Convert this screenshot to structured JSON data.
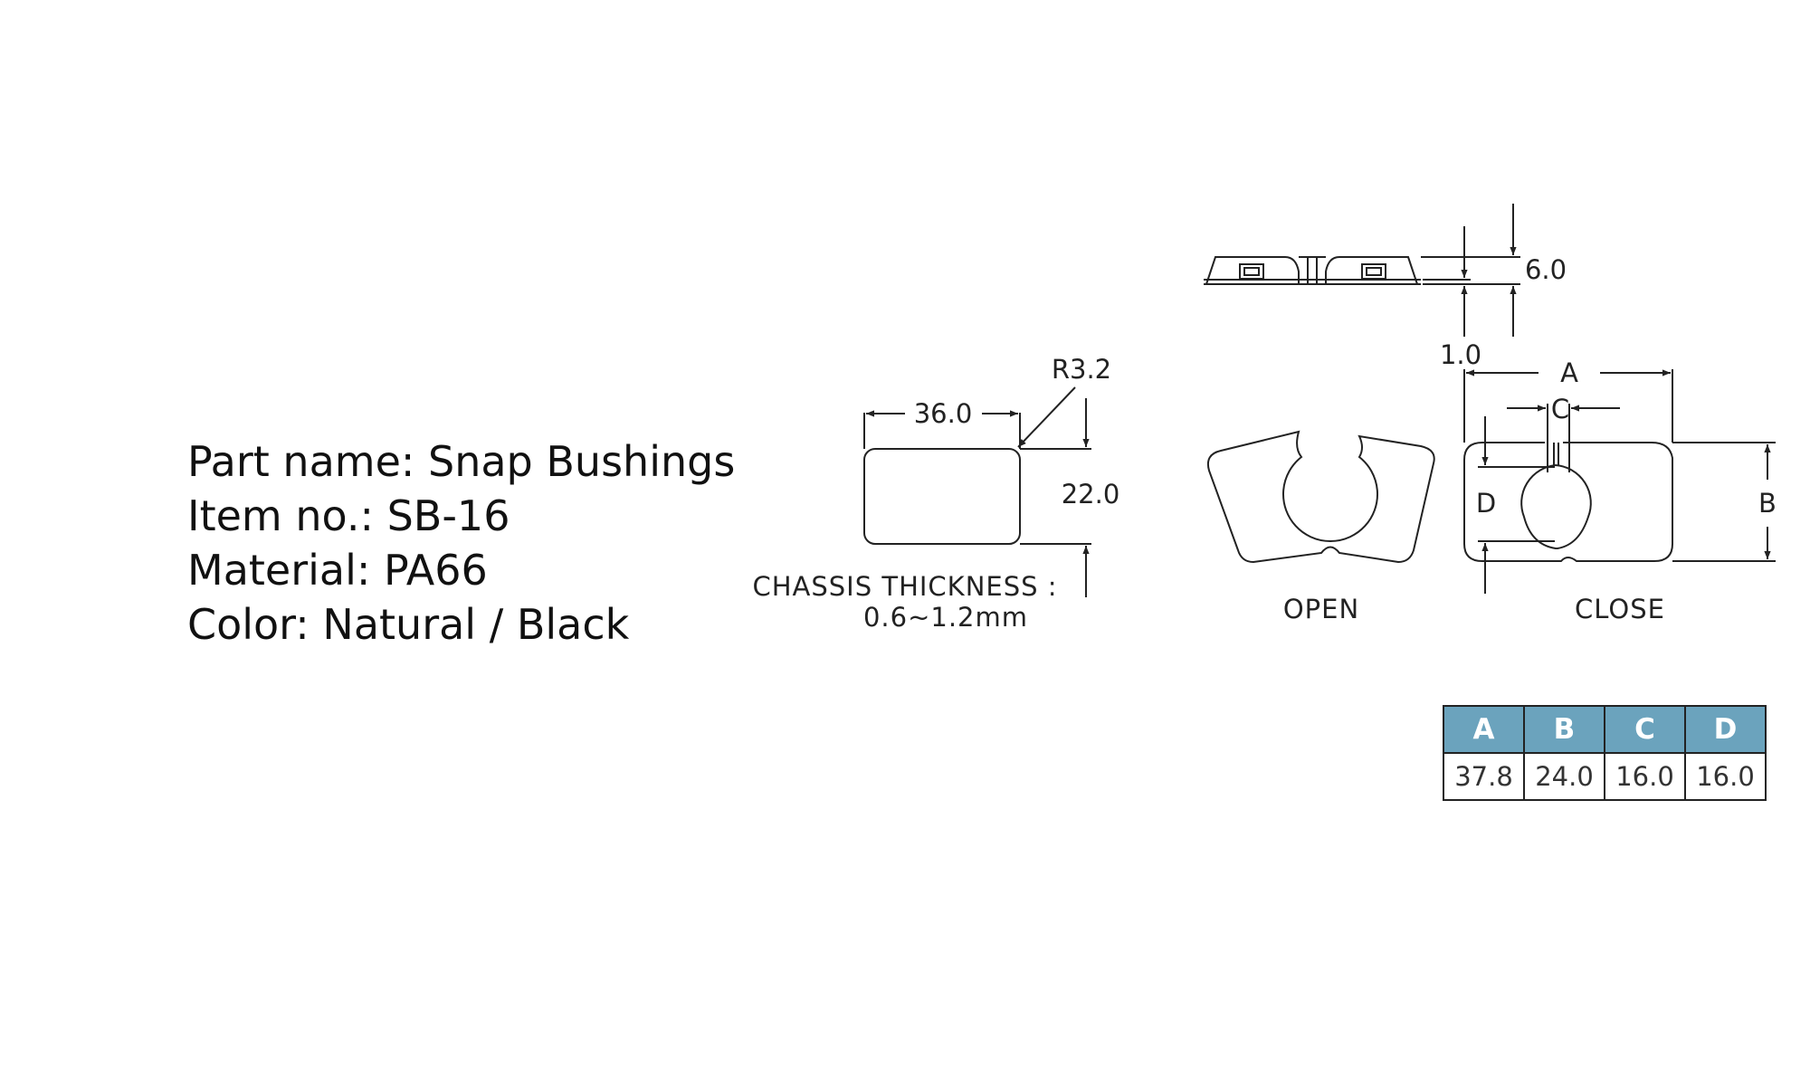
{
  "info": {
    "part_name": "Part name: Snap Bushings",
    "item_no": "Item no.: SB-16",
    "material": "Material: PA66",
    "color": "Color: Natural / Black"
  },
  "drawing": {
    "dims": {
      "width": "36.0",
      "radius": "R3.2",
      "height": "22.0",
      "side_height": "6.0",
      "flange": "1.0",
      "A": "A",
      "B": "B",
      "C": "C",
      "D": "D"
    },
    "chassis_label": "CHASSIS  THICKNESS :",
    "chassis_value": "0.6~1.2mm",
    "open_label": "OPEN",
    "close_label": "CLOSE"
  },
  "table": {
    "header_color": "#6ba3bd",
    "headers": [
      "A",
      "B",
      "C",
      "D"
    ],
    "values": [
      "37.8",
      "24.0",
      "16.0",
      "16.0"
    ]
  }
}
